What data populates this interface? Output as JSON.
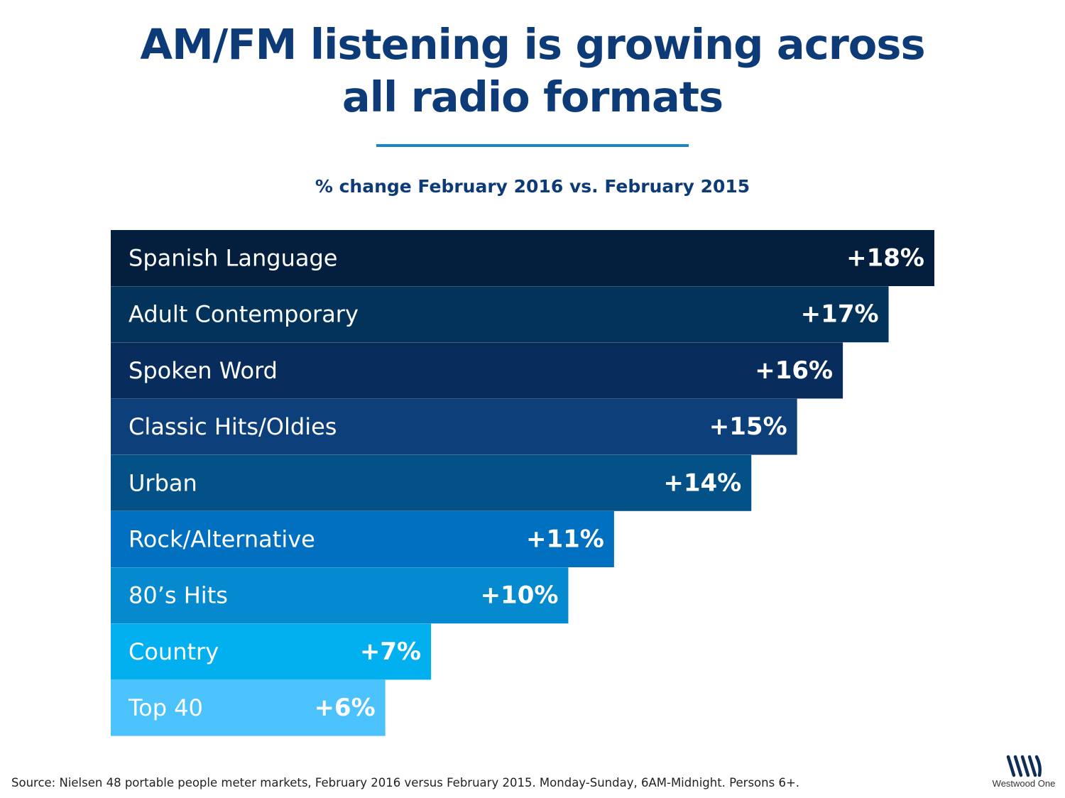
{
  "title": {
    "line1": "AM/FM listening is growing across",
    "line2": "all radio formats"
  },
  "subtitle": "% change February 2016 vs. February 2015",
  "chart_data": {
    "type": "bar",
    "orientation": "horizontal",
    "categories": [
      "Spanish Language",
      "Adult Contemporary",
      "Spoken Word",
      "Classic Hits/Oldies",
      "Urban",
      "Rock/Alternative",
      "80’s Hits",
      "Country",
      "Top 40"
    ],
    "values": [
      18,
      17,
      16,
      15,
      14,
      11,
      10,
      7,
      6
    ],
    "value_labels": [
      "+18%",
      "+17%",
      "+16%",
      "+15%",
      "+14%",
      "+11%",
      "+10%",
      "+7%",
      "+6%"
    ],
    "colors": [
      "#041e3e",
      "#03335b",
      "#082d5c",
      "#0d3f7a",
      "#035187",
      "#0170c0",
      "#0589cf",
      "#02b0ef",
      "#4bc2fb"
    ],
    "xlim": [
      0,
      18
    ],
    "title": "",
    "xlabel": "",
    "ylabel": "",
    "grid": false,
    "legend": "none"
  },
  "footer": {
    "source": "Source: Nielsen 48 portable people meter markets, February 2016 versus February 2015. Monday-Sunday, 6AM-Midnight. Persons 6+."
  },
  "logo": {
    "icon": "westwood-one-logo-icon",
    "text": "Westwood One",
    "color": "#0d2e57"
  }
}
